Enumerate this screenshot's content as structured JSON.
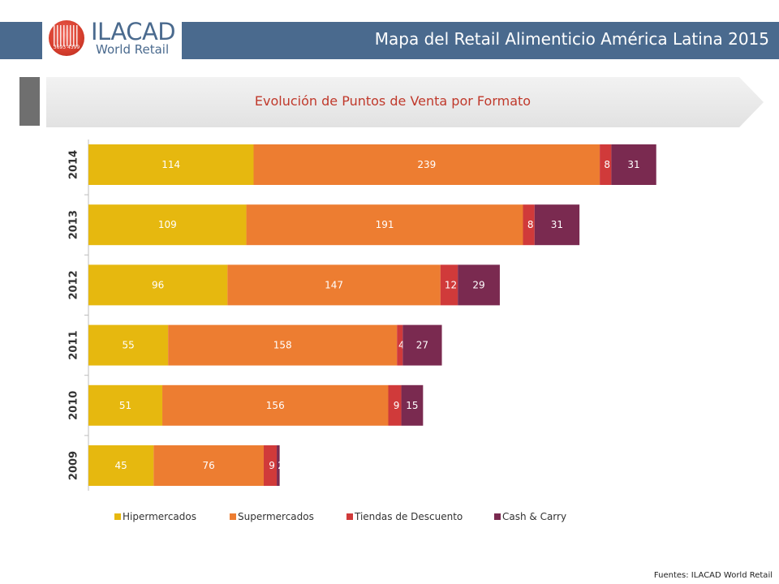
{
  "header": {
    "title": "Mapa del Retail Alimenticio América Latina 2015",
    "logo_title": "ILACAD",
    "logo_subtitle": "World Retail",
    "logo_numbers": "3693 4399"
  },
  "subtitle": "Evolución de Puntos de Venta por Formato",
  "footer": {
    "source": "Fuentes: ILACAD World Retail"
  },
  "colors": {
    "header_bar": "#4a6a8e",
    "title_red": "#c0392b"
  },
  "chart_data": {
    "type": "bar",
    "orientation": "horizontal",
    "stacked": true,
    "categories": [
      "2014",
      "2013",
      "2012",
      "2011",
      "2010",
      "2009"
    ],
    "series": [
      {
        "name": "Hipermercados",
        "color": "#e6b80f",
        "values": [
          114,
          109,
          96,
          55,
          51,
          45
        ]
      },
      {
        "name": "Supermercados",
        "color": "#ed7d31",
        "values": [
          239,
          191,
          147,
          158,
          156,
          76
        ]
      },
      {
        "name": "Tiendas de Descuento",
        "color": "#d03a3a",
        "values": [
          8,
          8,
          12,
          4,
          9,
          9
        ]
      },
      {
        "name": "Cash & Carry",
        "color": "#7a2a50",
        "values": [
          31,
          31,
          29,
          27,
          15,
          2
        ]
      }
    ],
    "legend_position": "bottom",
    "grid": false,
    "title": "",
    "xlabel": "",
    "ylabel": ""
  }
}
